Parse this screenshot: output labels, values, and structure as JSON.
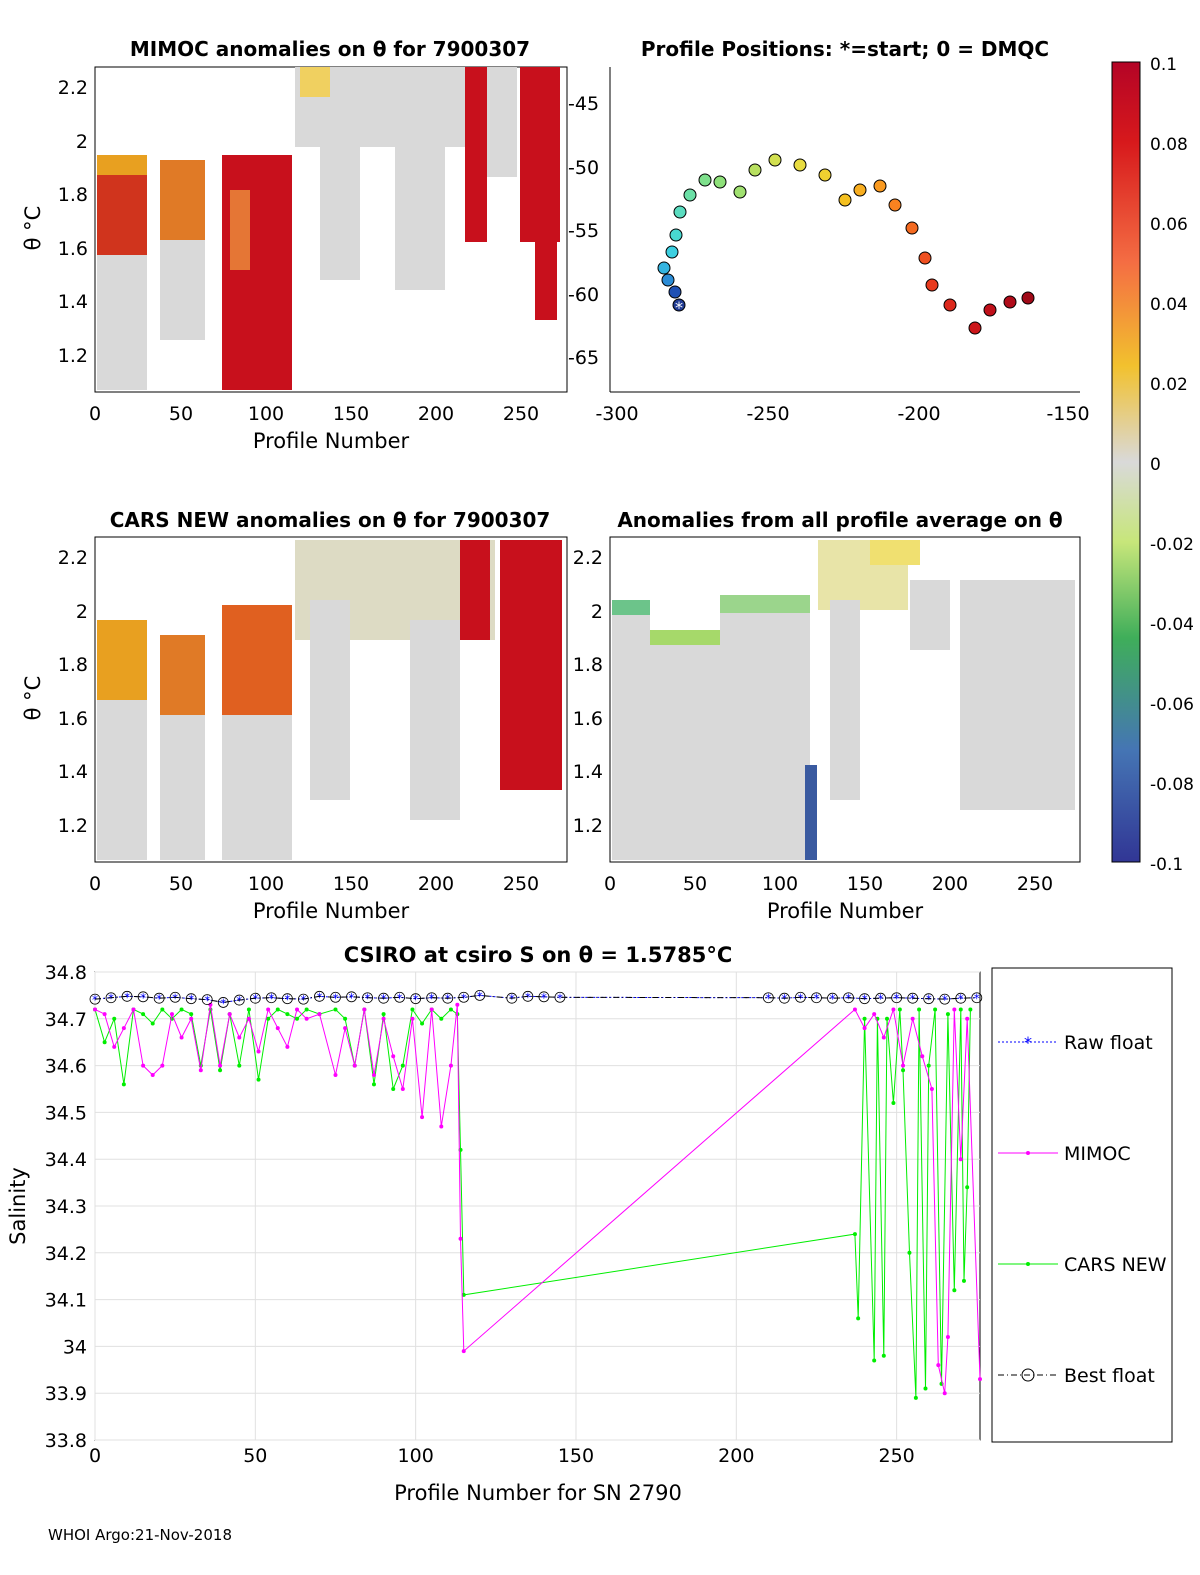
{
  "figure": {
    "footer": "WHOI Argo:21-Nov-2018"
  },
  "colorbar": {
    "min": -0.1,
    "max": 0.1,
    "tick_labels": [
      "0.1",
      "0.08",
      "0.06",
      "0.04",
      "0.02",
      "0",
      "-0.02",
      "-0.04",
      "-0.06",
      "-0.08",
      "-0.1"
    ],
    "colors": [
      "#b40426",
      "#d7191c",
      "#f46d43",
      "#fdae61",
      "#fee08b",
      "#d9d9d9",
      "#d9ef8b",
      "#66bd63",
      "#1a9850",
      "#4575b4",
      "#313695"
    ]
  },
  "panels": {
    "mimoc": {
      "title": "MIMOC anomalies on θ  for 7900307",
      "xlabel": "Profile Number",
      "ylabel": "θ °C",
      "xticks": [
        "0",
        "50",
        "100",
        "150",
        "200",
        "250"
      ],
      "yticks": [
        "2.2",
        "2",
        "1.8",
        "1.6",
        "1.4",
        "1.2"
      ]
    },
    "positions": {
      "title": "Profile Positions: *=start; 0 = DMQC",
      "xticks": [
        "-300",
        "-250",
        "-200",
        "-150"
      ],
      "yticks": [
        "-45",
        "-50",
        "-55",
        "-60",
        "-65"
      ]
    },
    "cars": {
      "title": "CARS NEW anomalies on θ for 7900307",
      "xlabel": "Profile Number",
      "ylabel": "θ °C",
      "xticks": [
        "0",
        "50",
        "100",
        "150",
        "200",
        "250"
      ],
      "yticks": [
        "2.2",
        "2",
        "1.8",
        "1.6",
        "1.4",
        "1.2"
      ]
    },
    "avg": {
      "title": "Anomalies from all profile average on θ",
      "xlabel": "Profile Number",
      "xticks": [
        "0",
        "50",
        "100",
        "150",
        "200",
        "250"
      ],
      "yticks": [
        "2.2",
        "2",
        "1.8",
        "1.6",
        "1.4",
        "1.2"
      ]
    }
  },
  "chart_data": {
    "type": "line",
    "title": "CSIRO at csiro S on θ = 1.5785°C",
    "xlabel": "Profile Number for SN 2790",
    "ylabel": "Salinity",
    "xlim": [
      0,
      276
    ],
    "ylim": [
      33.8,
      34.8
    ],
    "xticks": [
      0,
      50,
      100,
      150,
      200,
      250
    ],
    "yticks": [
      33.8,
      33.9,
      34,
      34.1,
      34.2,
      34.3,
      34.4,
      34.5,
      34.6,
      34.7,
      34.8
    ],
    "ytick_labels": [
      "33.8",
      "33.9",
      "34",
      "34.1",
      "34.2",
      "34.3",
      "34.4",
      "34.5",
      "34.6",
      "34.7",
      "34.8"
    ],
    "grid": true,
    "legend_position": "right",
    "series": [
      {
        "name": "Raw float",
        "color": "#0000ff",
        "x": [
          0,
          5,
          10,
          15,
          20,
          25,
          30,
          35,
          40,
          45,
          50,
          55,
          60,
          65,
          70,
          75,
          80,
          85,
          90,
          95,
          100,
          105,
          110,
          115,
          120,
          130,
          135,
          140,
          145,
          210,
          215,
          220,
          225,
          230,
          235,
          240,
          245,
          250,
          255,
          260,
          265,
          270,
          275
        ],
        "y": [
          34.742,
          34.745,
          34.748,
          34.747,
          34.744,
          34.746,
          34.743,
          34.741,
          34.735,
          34.74,
          34.744,
          34.745,
          34.743,
          34.742,
          34.748,
          34.746,
          34.747,
          34.745,
          34.744,
          34.746,
          34.743,
          34.745,
          34.744,
          34.746,
          34.75,
          34.744,
          34.748,
          34.747,
          34.746,
          34.745,
          34.744,
          34.746,
          34.745,
          34.744,
          34.745,
          34.743,
          34.744,
          34.745,
          34.744,
          34.743,
          34.742,
          34.744,
          34.745
        ]
      },
      {
        "name": "MIMOC",
        "color": "#ff00ff",
        "x": [
          0,
          3,
          6,
          9,
          12,
          15,
          18,
          21,
          24,
          27,
          30,
          33,
          36,
          39,
          42,
          45,
          48,
          51,
          54,
          57,
          60,
          63,
          66,
          70,
          75,
          78,
          81,
          84,
          87,
          90,
          93,
          96,
          99,
          102,
          105,
          108,
          111,
          113,
          114,
          115,
          237,
          240,
          243,
          246,
          249,
          252,
          255,
          258,
          261,
          263,
          265,
          266,
          268,
          270,
          272,
          276
        ],
        "y": [
          34.72,
          34.71,
          34.64,
          34.68,
          34.72,
          34.6,
          34.58,
          34.6,
          34.71,
          34.66,
          34.7,
          34.59,
          34.73,
          34.6,
          34.71,
          34.66,
          34.7,
          34.63,
          34.72,
          34.68,
          34.64,
          34.72,
          34.7,
          34.71,
          34.58,
          34.68,
          34.6,
          34.72,
          34.58,
          34.7,
          34.62,
          34.55,
          34.7,
          34.49,
          34.72,
          34.47,
          34.6,
          34.73,
          34.23,
          33.99,
          34.72,
          34.68,
          34.71,
          34.66,
          34.72,
          34.6,
          34.7,
          34.62,
          34.55,
          33.96,
          33.9,
          34.02,
          34.72,
          34.4,
          34.7,
          33.93
        ],
        "visible_range": [
          0,
          276
        ]
      },
      {
        "name": "CARS NEW",
        "color": "#00ee00",
        "x": [
          0,
          3,
          6,
          9,
          12,
          15,
          18,
          21,
          24,
          27,
          30,
          33,
          36,
          39,
          42,
          45,
          48,
          51,
          54,
          57,
          60,
          63,
          66,
          70,
          75,
          78,
          81,
          84,
          87,
          90,
          93,
          96,
          99,
          102,
          105,
          108,
          111,
          113,
          114,
          115,
          237,
          238,
          240,
          243,
          244,
          246,
          247,
          249,
          251,
          252,
          254,
          256,
          257,
          259,
          260,
          262,
          264,
          266,
          268,
          270,
          271,
          272,
          273
        ],
        "y": [
          34.72,
          34.65,
          34.7,
          34.56,
          34.72,
          34.71,
          34.69,
          34.72,
          34.7,
          34.72,
          34.71,
          34.6,
          34.72,
          34.59,
          34.71,
          34.6,
          34.72,
          34.57,
          34.7,
          34.72,
          34.71,
          34.7,
          34.72,
          34.71,
          34.72,
          34.7,
          34.6,
          34.72,
          34.56,
          34.71,
          34.55,
          34.6,
          34.72,
          34.69,
          34.72,
          34.7,
          34.72,
          34.71,
          34.42,
          34.11,
          34.24,
          34.06,
          34.7,
          33.97,
          34.7,
          33.98,
          34.7,
          34.52,
          34.72,
          34.59,
          34.2,
          33.89,
          34.72,
          33.91,
          34.6,
          34.72,
          33.92,
          34.71,
          34.12,
          34.72,
          34.14,
          34.34,
          34.72
        ]
      },
      {
        "name": "Best float",
        "color": "#000000",
        "x": [
          0,
          5,
          10,
          15,
          20,
          25,
          30,
          35,
          40,
          45,
          50,
          55,
          60,
          65,
          70,
          75,
          80,
          85,
          90,
          95,
          100,
          105,
          110,
          115,
          120,
          130,
          135,
          140,
          145,
          210,
          215,
          220,
          225,
          230,
          235,
          240,
          245,
          250,
          255,
          260,
          265,
          270,
          275
        ],
        "y": [
          34.742,
          34.745,
          34.748,
          34.747,
          34.744,
          34.746,
          34.743,
          34.741,
          34.735,
          34.74,
          34.744,
          34.745,
          34.743,
          34.742,
          34.748,
          34.746,
          34.747,
          34.745,
          34.744,
          34.746,
          34.743,
          34.745,
          34.744,
          34.746,
          34.75,
          34.744,
          34.748,
          34.747,
          34.746,
          34.745,
          34.744,
          34.746,
          34.745,
          34.744,
          34.745,
          34.743,
          34.744,
          34.745,
          34.744,
          34.743,
          34.742,
          34.744,
          34.745
        ]
      }
    ]
  }
}
